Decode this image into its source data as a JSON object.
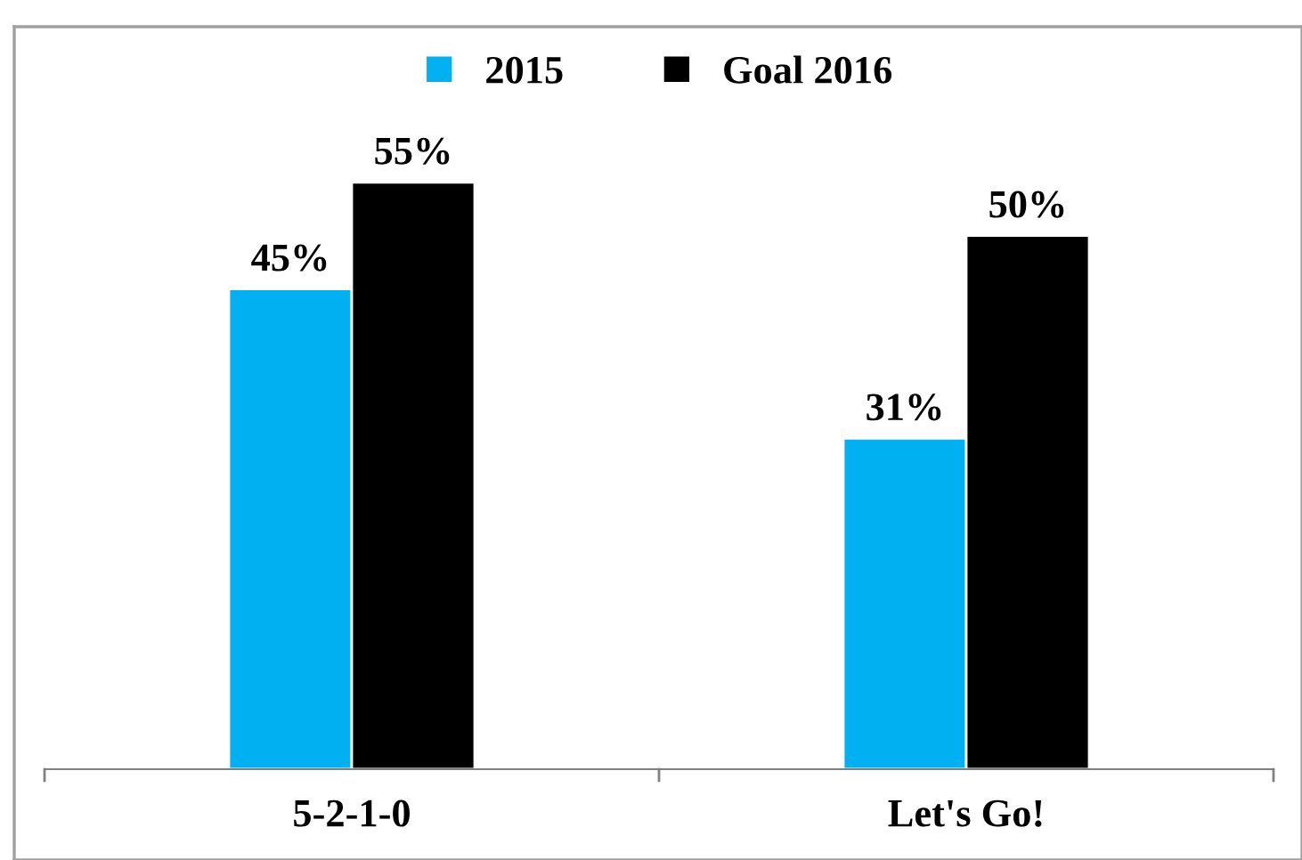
{
  "chart_data": {
    "type": "bar",
    "categories": [
      "5-2-1-0",
      "Let's Go!"
    ],
    "series": [
      {
        "name": "2015",
        "color": "#00b0f0",
        "values": [
          45,
          31
        ],
        "value_labels": [
          "45%",
          "31%"
        ]
      },
      {
        "name": "Goal 2016",
        "color": "#000000",
        "values": [
          55,
          50
        ],
        "value_labels": [
          "55%",
          "50%"
        ]
      }
    ],
    "legend": "top",
    "grid": false
  }
}
